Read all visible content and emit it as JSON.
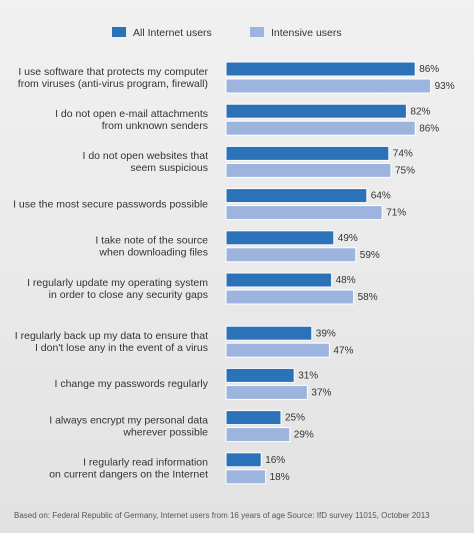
{
  "chart_data": {
    "type": "bar",
    "orientation": "horizontal",
    "categories": [
      [
        "I use software that protects my computer",
        "from viruses (anti-virus program, firewall)"
      ],
      [
        "I do not open e-mail attachments",
        "from unknown senders"
      ],
      [
        "I do not open websites that",
        "seem suspicious"
      ],
      [
        "I use the most secure passwords possible"
      ],
      [
        "I take note of the source",
        "when downloading files"
      ],
      [
        "I regularly update my operating system",
        "in order to close any security gaps"
      ],
      [
        "I regularly back up my data to ensure that",
        "I don't lose any in the event of a virus"
      ],
      [
        "I change my passwords regularly"
      ],
      [
        "I always encrypt my personal data",
        "wherever possible"
      ],
      [
        "I regularly read information",
        "on current dangers on the Internet"
      ]
    ],
    "series": [
      {
        "name": "All Internet users",
        "color": "#2b72b8",
        "values": [
          86,
          82,
          74,
          64,
          49,
          48,
          39,
          31,
          25,
          16
        ],
        "value_labels": [
          "86%",
          "82%",
          "74%",
          "64%",
          "49%",
          "48%",
          "39%",
          "31%",
          "25%",
          "16%"
        ]
      },
      {
        "name": "Intensive users",
        "color": "#9db4de",
        "values": [
          93,
          86,
          75,
          71,
          59,
          58,
          47,
          37,
          29,
          18
        ],
        "value_labels": [
          "93%",
          "86%",
          "75%",
          "71%",
          "59%",
          "58%",
          "47%",
          "37%",
          "29%",
          "18%"
        ]
      }
    ],
    "xlim": [
      0,
      100
    ],
    "footnote": "Based on: Federal Republic of Germany, Internet users from 16 years of age",
    "source": "Source: IfD survey 11015, October 2013"
  }
}
